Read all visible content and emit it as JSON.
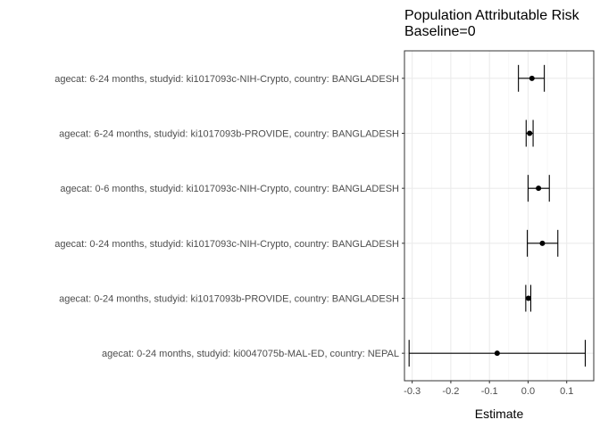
{
  "chart_data": {
    "type": "forest",
    "title": "Population Attributable Risk",
    "subtitle": "Baseline=0",
    "xlabel": "Estimate",
    "ylabel": "",
    "xlim": [
      -0.32,
      0.17
    ],
    "xticks": [
      -0.3,
      -0.2,
      -0.1,
      0.0,
      0.1
    ],
    "xtick_labels": [
      "-0.3",
      "-0.2",
      "-0.1",
      "0.0",
      "0.1"
    ],
    "grid": true,
    "rows": [
      {
        "label": "agecat: 6-24 months, studyid: ki1017093c-NIH-Crypto, country: BANGLADESH",
        "estimate": 0.01,
        "lower": -0.025,
        "upper": 0.042
      },
      {
        "label": "agecat: 6-24 months, studyid: ki1017093b-PROVIDE, country: BANGLADESH",
        "estimate": 0.004,
        "lower": -0.005,
        "upper": 0.013
      },
      {
        "label": "agecat: 0-6 months, studyid: ki1017093c-NIH-Crypto, country: BANGLADESH",
        "estimate": 0.027,
        "lower": 0.0,
        "upper": 0.055
      },
      {
        "label": "agecat: 0-24 months, studyid: ki1017093c-NIH-Crypto, country: BANGLADESH",
        "estimate": 0.037,
        "lower": -0.002,
        "upper": 0.077
      },
      {
        "label": "agecat: 0-24 months, studyid: ki1017093b-PROVIDE, country: BANGLADESH",
        "estimate": 0.001,
        "lower": -0.006,
        "upper": 0.007
      },
      {
        "label": "agecat: 0-24 months, studyid: ki0047075b-MAL-ED, country: NEPAL",
        "estimate": -0.08,
        "lower": -0.308,
        "upper": 0.148
      }
    ]
  }
}
